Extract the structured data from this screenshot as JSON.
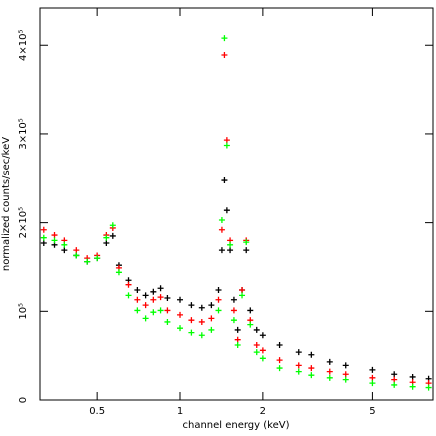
{
  "chart_data": {
    "type": "scatter",
    "x_label": "channel energy (keV)",
    "y_label": "normalized counts/sec/keV",
    "xscale": "log",
    "xlim": [
      0.31,
      8.3
    ],
    "ylim": [
      0,
      442000
    ],
    "xticks": [
      0.5,
      1,
      2,
      5
    ],
    "yticks": [
      {
        "value": 0,
        "label": "0"
      },
      {
        "value": 100000,
        "label": "10⁵"
      },
      {
        "value": 200000,
        "label": "2×10⁵"
      },
      {
        "value": 300000,
        "label": "3×10⁵"
      },
      {
        "value": 400000,
        "label": "4×10⁵"
      }
    ],
    "x": [
      0.32,
      0.35,
      0.38,
      0.42,
      0.46,
      0.5,
      0.54,
      0.57,
      0.6,
      0.65,
      0.7,
      0.75,
      0.8,
      0.85,
      0.9,
      1.0,
      1.1,
      1.2,
      1.3,
      1.38,
      1.42,
      1.45,
      1.48,
      1.52,
      1.57,
      1.62,
      1.68,
      1.74,
      1.8,
      1.9,
      2.0,
      2.3,
      2.7,
      3.0,
      3.5,
      4.0,
      5.0,
      6.0,
      7.0,
      8.0
    ],
    "series": [
      {
        "color": "#000000",
        "values": [
          177000,
          175000,
          169000,
          163000,
          156000,
          160000,
          177000,
          185000,
          152000,
          135000,
          124000,
          118000,
          122000,
          126000,
          115000,
          113000,
          107000,
          104000,
          107000,
          124000,
          169000,
          248000,
          214000,
          169000,
          113000,
          79000,
          124000,
          169000,
          101000,
          79000,
          73000,
          62000,
          54000,
          51000,
          43000,
          39000,
          34000,
          29000,
          26000,
          24000
        ]
      },
      {
        "color": "#ff0000",
        "values": [
          192000,
          186000,
          180000,
          169000,
          160000,
          163000,
          186000,
          194000,
          149000,
          130000,
          113000,
          107000,
          113000,
          116000,
          101000,
          96000,
          90000,
          88000,
          92000,
          113000,
          192000,
          389000,
          293000,
          180000,
          101000,
          68000,
          124000,
          180000,
          90000,
          62000,
          56000,
          45000,
          39000,
          36000,
          32000,
          29000,
          25000,
          23000,
          20000,
          19000
        ]
      },
      {
        "color": "#00ff00",
        "values": [
          183000,
          180000,
          175000,
          163000,
          156000,
          160000,
          183000,
          197000,
          144000,
          118000,
          101000,
          92000,
          99000,
          101000,
          88000,
          81000,
          76000,
          73000,
          79000,
          101000,
          203000,
          408000,
          287000,
          175000,
          90000,
          62000,
          118000,
          178000,
          85000,
          54000,
          47000,
          36000,
          32000,
          28000,
          25000,
          23000,
          19000,
          17000,
          15000,
          14000
        ]
      }
    ]
  }
}
